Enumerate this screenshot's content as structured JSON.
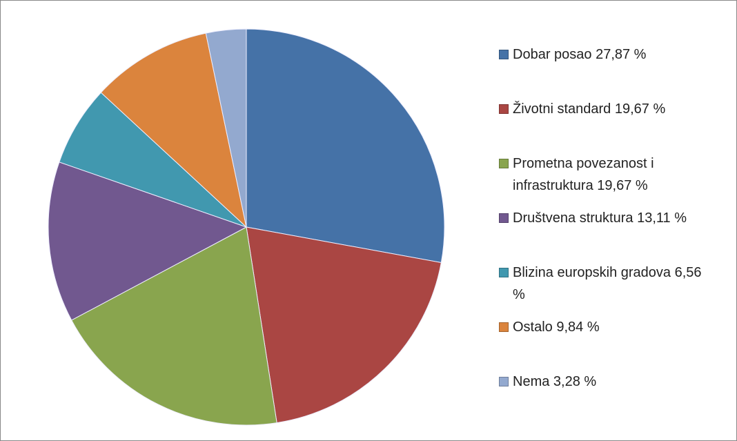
{
  "chart_data": {
    "type": "pie",
    "categories": [
      "Dobar posao 27,87 %",
      "Životni standard 19,67 %",
      "Prometna povezanost i infrastruktura 19,67 %",
      "Društvena struktura 13,11 %",
      "Blizina europskih gradova 6,56 %",
      "Ostalo 9,84 %",
      "Nema 3,28 %"
    ],
    "values": [
      27.87,
      19.67,
      19.67,
      13.11,
      6.56,
      9.84,
      3.28
    ],
    "colors": [
      "#4572a7",
      "#aa4643",
      "#89a54e",
      "#71588f",
      "#4198af",
      "#db843d",
      "#93a9cf"
    ],
    "legend": "right"
  }
}
